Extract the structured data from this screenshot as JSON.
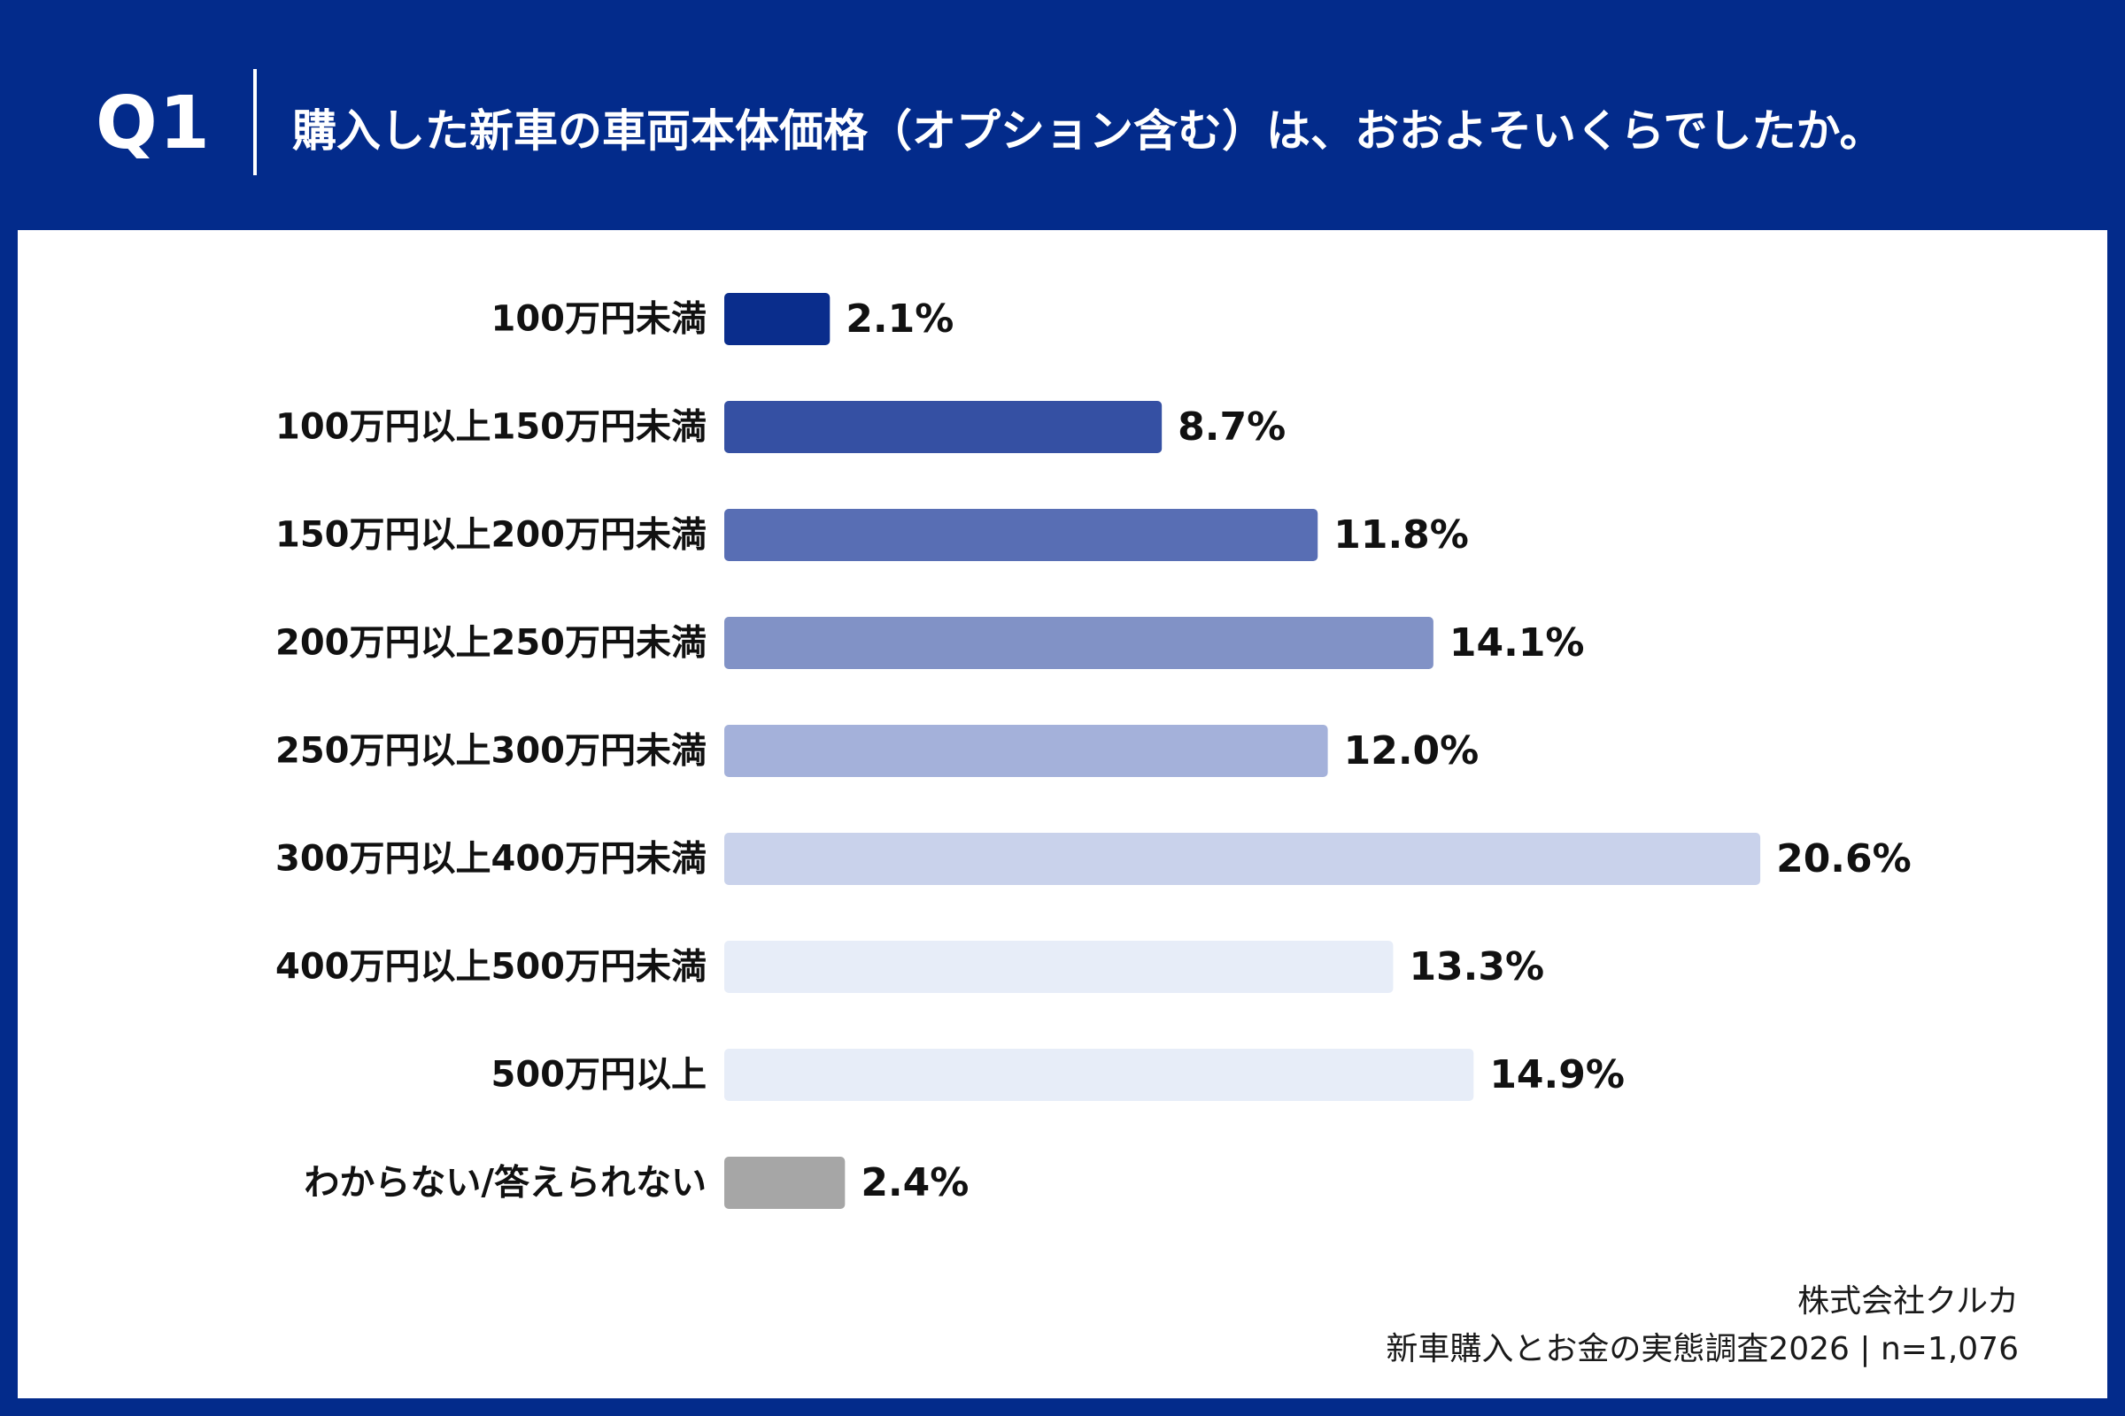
{
  "header": {
    "q_label": "Q1",
    "question": "購入した新車の車両本体価格（オプション含む）は、おおよそいくらでしたか。"
  },
  "chart_data": {
    "type": "bar",
    "orientation": "horizontal",
    "categories": [
      "100万円未満",
      "100万円以上150万円未満",
      "150万円以上200万円未満",
      "200万円以上250万円未満",
      "250万円以上300万円未満",
      "300万円以上400万円未満",
      "400万円以上500万円未満",
      "500万円以上",
      "わからない/答えられない"
    ],
    "values": [
      2.1,
      8.7,
      11.8,
      14.1,
      12.0,
      20.6,
      13.3,
      14.9,
      2.4
    ],
    "value_labels": [
      "2.1%",
      "8.7%",
      "11.8%",
      "14.1%",
      "12.0%",
      "20.6%",
      "13.3%",
      "14.9%",
      "2.4%"
    ],
    "unit": "%",
    "colors": [
      "#0a2d8c",
      "#3550a3",
      "#586eb4",
      "#8192c6",
      "#a4b1da",
      "#c9d2eb",
      "#e7edf8",
      "#e7edf8",
      "#a6a6a6"
    ],
    "grid": false,
    "legend": "none"
  },
  "source": {
    "company": "株式会社クルカ",
    "survey": "新車購入とお金の実態調査2026 | n=1,076"
  },
  "colors": {
    "background": "#032b8b",
    "panel": "#ffffff",
    "text": "#111111"
  }
}
